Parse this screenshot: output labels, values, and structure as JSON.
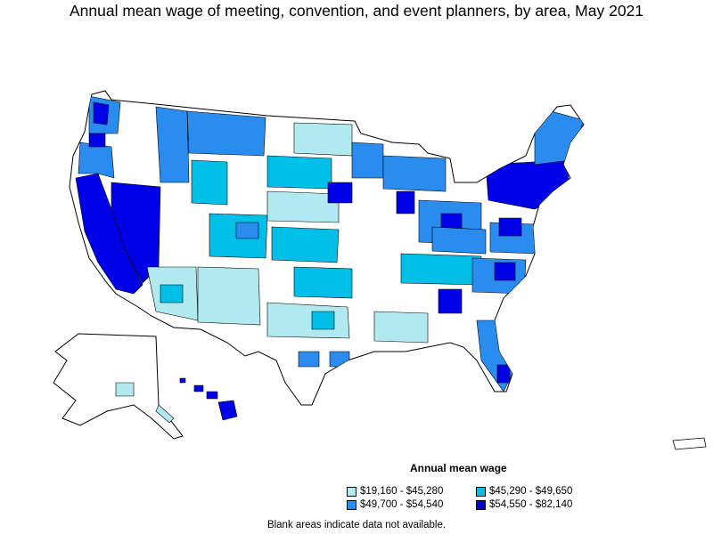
{
  "title": "Annual mean wage of meeting, convention, and event planners, by area, May 2021",
  "legend": {
    "title": "Annual mean wage",
    "bins": [
      {
        "label": "$19,160 - $45,280",
        "color": "#b0eaf0"
      },
      {
        "label": "$45,290 - $49,650",
        "color": "#00c0e8"
      },
      {
        "label": "$49,700 - $54,540",
        "color": "#2b8cf0"
      },
      {
        "label": "$54,550 - $82,140",
        "color": "#0000e8"
      }
    ]
  },
  "footnote": "Blank areas indicate data not available.",
  "colors": {
    "no_data": "#ffffff",
    "border": "#000000"
  }
}
